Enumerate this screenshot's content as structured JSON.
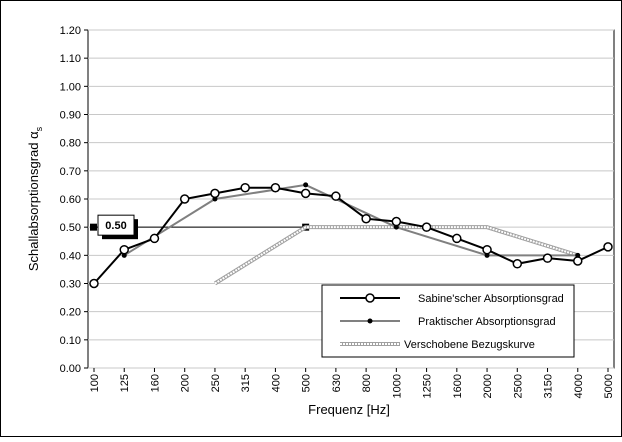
{
  "chart_data": {
    "type": "line",
    "y_label": "Schallabsorptionsgrad α",
    "y_label_sub": "s",
    "x_label": "Frequenz  [Hz]",
    "categories": [
      "100",
      "125",
      "160",
      "200",
      "250",
      "315",
      "400",
      "500",
      "630",
      "800",
      "1000",
      "1250",
      "1600",
      "2000",
      "2500",
      "3150",
      "4000",
      "5000"
    ],
    "ylim": [
      0,
      1.2
    ],
    "yticks": [
      {
        "value": 0,
        "label": "0.00"
      },
      {
        "value": 0.1,
        "label": "0.10"
      },
      {
        "value": 0.2,
        "label": "0.20"
      },
      {
        "value": 0.3,
        "label": "0.30"
      },
      {
        "value": 0.4,
        "label": "0.40"
      },
      {
        "value": 0.5,
        "label": "0.50"
      },
      {
        "value": 0.6,
        "label": "0.60"
      },
      {
        "value": 0.7,
        "label": "0.70"
      },
      {
        "value": 0.8,
        "label": "0.80"
      },
      {
        "value": 0.9,
        "label": "0.90"
      },
      {
        "value": 1.0,
        "label": "1.00"
      },
      {
        "value": 1.1,
        "label": "1.10"
      },
      {
        "value": 1.2,
        "label": "1.20"
      }
    ],
    "grid": true,
    "alpha_w": {
      "value": 0.5,
      "label": "0.50"
    },
    "series": [
      {
        "name": "Sabine'scher Absorptionsgrad",
        "color": "#000000",
        "marker": "open-circle",
        "values": [
          0.3,
          0.42,
          0.46,
          0.6,
          0.62,
          0.64,
          0.64,
          0.62,
          0.61,
          0.53,
          0.52,
          0.5,
          0.46,
          0.42,
          0.37,
          0.39,
          0.38,
          0.43
        ]
      },
      {
        "name": "Praktischer Absorptionsgrad",
        "color": "#808080",
        "marker": "dot",
        "connect_gaps": true,
        "values": [
          null,
          0.4,
          null,
          null,
          0.6,
          null,
          null,
          0.65,
          null,
          null,
          0.5,
          null,
          null,
          0.4,
          null,
          null,
          0.4,
          null
        ]
      },
      {
        "name": "Verschobene Bezugskurve",
        "color": "#a0a0a0",
        "marker": "none",
        "dashed": true,
        "connect_gaps": true,
        "values": [
          null,
          null,
          null,
          null,
          0.3,
          null,
          null,
          0.5,
          null,
          null,
          0.5,
          null,
          null,
          0.5,
          null,
          null,
          0.4,
          null
        ]
      }
    ]
  }
}
